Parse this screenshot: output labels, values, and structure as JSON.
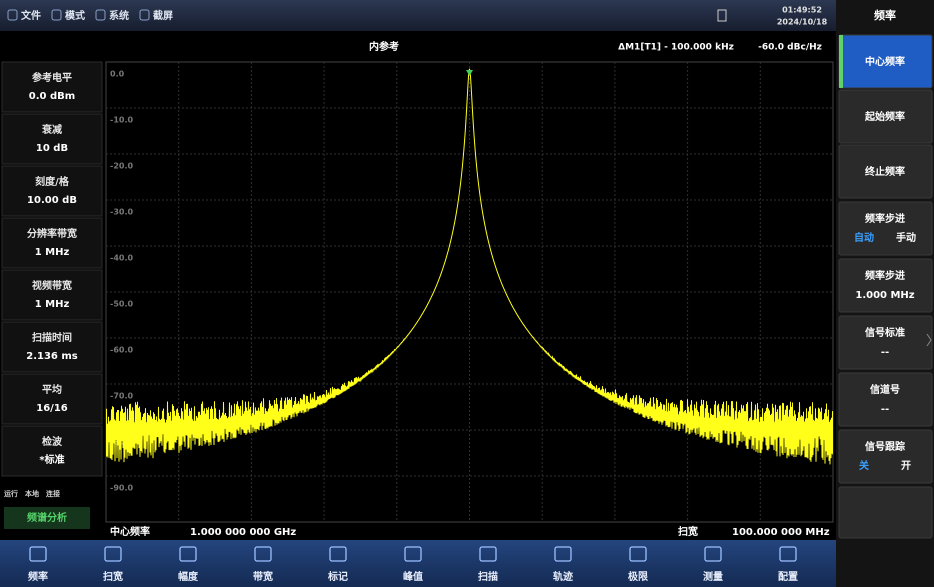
{
  "top_bar": {
    "menus": [
      "文件",
      "模式",
      "系统",
      "截屏"
    ],
    "time": "01:49:52",
    "date": "2024/10/18"
  },
  "plot": {
    "reference": "内参考",
    "marker": "ΔM1[T1] - 100.000 kHz",
    "marker_value": "-60.0 dBc/Hz",
    "y_labels": [
      "0.0",
      "-10.0",
      "-20.0",
      "-30.0",
      "-40.0",
      "-50.0",
      "-60.0",
      "-70.0",
      "-80.0",
      "-90.0"
    ],
    "center_label": "中心频率",
    "center_value": "1.000 000 000 GHz",
    "span_label": "扫宽",
    "span_value": "100.000 000 MHz"
  },
  "left_panel": {
    "params": [
      {
        "label": "参考电平",
        "value": "0.0 dBm"
      },
      {
        "label": "衰减",
        "value": "10 dB"
      },
      {
        "label": "刻度/格",
        "value": "10.00 dB"
      },
      {
        "label": "分辨率带宽",
        "value": "1 MHz"
      },
      {
        "label": "视频带宽",
        "value": "1 MHz"
      },
      {
        "label": "扫描时间",
        "value": "2.136 ms"
      },
      {
        "label": "平均",
        "value": "16/16"
      },
      {
        "label": "检波",
        "value": "*标准"
      }
    ],
    "status": [
      "运行",
      "本地",
      "连接"
    ],
    "mode": "频谱分析"
  },
  "right_panel": {
    "title": "频率",
    "buttons": [
      {
        "label": "中心频率"
      },
      {
        "label": "起始频率"
      },
      {
        "label": "终止频率"
      },
      {
        "label": "频率步进",
        "options": [
          "自动",
          "手动"
        ]
      },
      {
        "label": "频率步进",
        "value": "1.000 MHz"
      },
      {
        "label": "信号标准",
        "value": "--"
      },
      {
        "label": "信道号",
        "value": "--"
      },
      {
        "label": "信号跟踪",
        "options": [
          "关",
          "开"
        ]
      }
    ]
  },
  "bottom_menu": [
    "频率",
    "扫宽",
    "幅度",
    "带宽",
    "标记",
    "峰值",
    "扫描",
    "轨迹",
    "极限",
    "测量",
    "配置"
  ]
}
